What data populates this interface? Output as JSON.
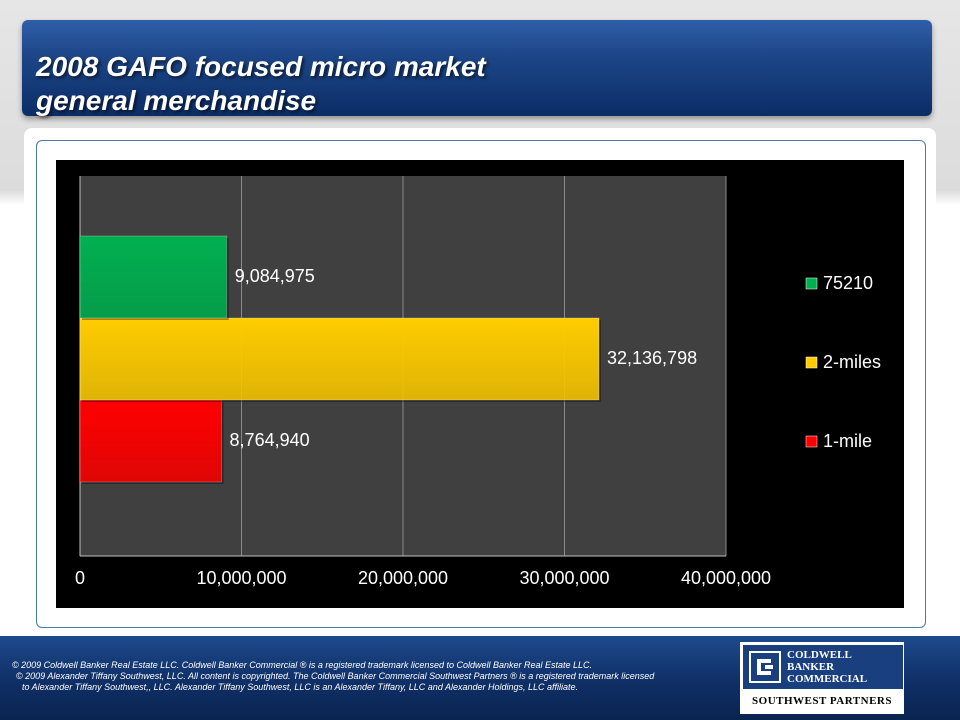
{
  "slide": {
    "title_line1": "2008 GAFO focused micro market",
    "title_line2": "general merchandise"
  },
  "chart_data": {
    "type": "bar",
    "orientation": "horizontal",
    "background": "#000000",
    "plot_background": "#404040",
    "categories": [
      "1-mile",
      "2-miles",
      "75210"
    ],
    "series": [
      {
        "name": "1-mile",
        "value": 8764940,
        "label": "8,764,940",
        "color": "#ff0000"
      },
      {
        "name": "2-miles",
        "value": 32136798,
        "label": "32,136,798",
        "color": "#ffcc00"
      },
      {
        "name": "75210",
        "value": 9084975,
        "label": "9,084,975",
        "color": "#00b050"
      }
    ],
    "legend_order": [
      "75210",
      "2-miles",
      "1-mile"
    ],
    "xlim": [
      0,
      40000000
    ],
    "xticks": [
      {
        "value": 0,
        "label": "0"
      },
      {
        "value": 10000000,
        "label": "10,000,000"
      },
      {
        "value": 20000000,
        "label": "20,000,000"
      },
      {
        "value": 30000000,
        "label": "30,000,000"
      },
      {
        "value": 40000000,
        "label": "40,000,000"
      }
    ],
    "grid": true,
    "legend_position": "right"
  },
  "footer": {
    "line1": "© 2009 Coldwell Banker Real Estate LLC. Coldwell Banker Commercial ® is a registered trademark licensed to Coldwell Banker Real Estate LLC.",
    "line2": "© 2009 Alexander Tiffany Southwest, LLC. All content is copyrighted. The Coldwell Banker Commercial Southwest Partners ® is a registered trademark licensed",
    "line3": "to Alexander Tiffany Southwest,, LLC.  Alexander Tiffany Southwest, LLC is an Alexander Tiffany, LLC and Alexander Holdings, LLC affiliate."
  },
  "logo": {
    "line1": "COLDWELL",
    "line2": "BANKER",
    "line3": "COMMERCIAL",
    "subtitle": "SOUTHWEST PARTNERS",
    "brand_color": "#1a3f7e"
  }
}
